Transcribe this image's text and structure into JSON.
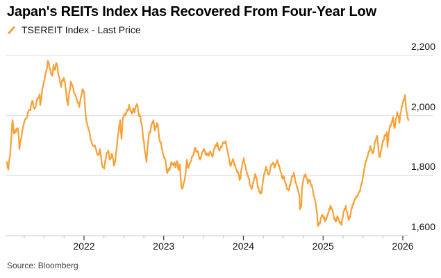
{
  "header": {
    "title": "Japan's REITs Index Has Recovered From Four-Year Low",
    "legend": {
      "icon": "slash-icon",
      "label": "TSEREIT Index - Last Price"
    }
  },
  "footer": {
    "source": "Source: Bloomberg"
  },
  "colors": {
    "series": "#F7A139",
    "grid": "#DCDCDC",
    "axis_line": "#C9C9C9",
    "tick_major": "#333333",
    "tick_minor": "#BBBBBB",
    "label": "#111111",
    "title": "#000000",
    "source_text": "#404040",
    "background": "#FFFFFF"
  },
  "chart_data": {
    "type": "line",
    "title": "Japan's REITs Index Has Recovered From Four-Year Low",
    "series_name": "TSEREIT Index - Last Price",
    "legend_position": "top-left",
    "grid": "horizontal",
    "y_axis_side": "right",
    "x_ticks": [
      2022,
      2023,
      2024,
      2025,
      2026
    ],
    "x_tick_labels": [
      "2022",
      "2023",
      "2024",
      "2025",
      "2026"
    ],
    "x_minor_tick_step_years": 0.25,
    "y_ticks": [
      1600,
      1800,
      2000,
      2200
    ],
    "y_tick_labels": [
      "1,600",
      "1,800",
      "2,000",
      "2,200"
    ],
    "xlim": [
      2021.03,
      2026.08
    ],
    "ylim": [
      1600,
      2240
    ],
    "points": [
      [
        2021.033,
        1845
      ],
      [
        2021.05,
        1820
      ],
      [
        2021.076,
        1880
      ],
      [
        2021.094,
        1950
      ],
      [
        2021.102,
        1985
      ],
      [
        2021.12,
        1940
      ],
      [
        2021.146,
        1945
      ],
      [
        2021.172,
        1958
      ],
      [
        2021.189,
        1888
      ],
      [
        2021.216,
        1930
      ],
      [
        2021.242,
        1970
      ],
      [
        2021.268,
        1990
      ],
      [
        2021.294,
        2005
      ],
      [
        2021.32,
        2020
      ],
      [
        2021.338,
        2035
      ],
      [
        2021.355,
        2048
      ],
      [
        2021.372,
        2025
      ],
      [
        2021.399,
        2038
      ],
      [
        2021.425,
        2060
      ],
      [
        2021.442,
        2071
      ],
      [
        2021.451,
        2035
      ],
      [
        2021.477,
        2090
      ],
      [
        2021.503,
        2118
      ],
      [
        2021.529,
        2150
      ],
      [
        2021.547,
        2182
      ],
      [
        2021.564,
        2165
      ],
      [
        2021.582,
        2148
      ],
      [
        2021.599,
        2132
      ],
      [
        2021.617,
        2168
      ],
      [
        2021.634,
        2152
      ],
      [
        2021.651,
        2175
      ],
      [
        2021.669,
        2158
      ],
      [
        2021.686,
        2130
      ],
      [
        2021.712,
        2095
      ],
      [
        2021.73,
        2120
      ],
      [
        2021.747,
        2126
      ],
      [
        2021.773,
        2085
      ],
      [
        2021.791,
        2045
      ],
      [
        2021.8,
        2035
      ],
      [
        2021.817,
        2080
      ],
      [
        2021.834,
        2113
      ],
      [
        2021.861,
        2095
      ],
      [
        2021.878,
        2075
      ],
      [
        2021.904,
        2058
      ],
      [
        2021.922,
        2043
      ],
      [
        2021.939,
        2028
      ],
      [
        2021.965,
        2065
      ],
      [
        2021.983,
        2088
      ],
      [
        2022.0,
        2078
      ],
      [
        2022.017,
        2010
      ],
      [
        2022.044,
        1965
      ],
      [
        2022.07,
        1942
      ],
      [
        2022.096,
        1912
      ],
      [
        2022.122,
        1898
      ],
      [
        2022.148,
        1890
      ],
      [
        2022.174,
        1868
      ],
      [
        2022.2,
        1888
      ],
      [
        2022.227,
        1836
      ],
      [
        2022.253,
        1823
      ],
      [
        2022.279,
        1868
      ],
      [
        2022.305,
        1884
      ],
      [
        2022.322,
        1853
      ],
      [
        2022.349,
        1873
      ],
      [
        2022.375,
        1833
      ],
      [
        2022.392,
        1846
      ],
      [
        2022.41,
        1893
      ],
      [
        2022.436,
        1950
      ],
      [
        2022.453,
        1985
      ],
      [
        2022.471,
        1922
      ],
      [
        2022.488,
        1992
      ],
      [
        2022.514,
        2000
      ],
      [
        2022.532,
        2008
      ],
      [
        2022.549,
        2020
      ],
      [
        2022.566,
        2036
      ],
      [
        2022.584,
        2016
      ],
      [
        2022.601,
        2006
      ],
      [
        2022.619,
        2024
      ],
      [
        2022.636,
        2010
      ],
      [
        2022.654,
        2030
      ],
      [
        2022.671,
        2034
      ],
      [
        2022.688,
        2000
      ],
      [
        2022.706,
        1996
      ],
      [
        2022.715,
        1975
      ],
      [
        2022.732,
        1955
      ],
      [
        2022.75,
        1915
      ],
      [
        2022.767,
        1875
      ],
      [
        2022.784,
        1845
      ],
      [
        2022.802,
        1905
      ],
      [
        2022.819,
        1945
      ],
      [
        2022.837,
        1955
      ],
      [
        2022.854,
        1975
      ],
      [
        2022.871,
        1985
      ],
      [
        2022.889,
        1950
      ],
      [
        2022.906,
        1962
      ],
      [
        2022.924,
        1973
      ],
      [
        2022.941,
        1930
      ],
      [
        2022.959,
        1912
      ],
      [
        2022.976,
        1890
      ],
      [
        2022.993,
        1872
      ],
      [
        2023.011,
        1860
      ],
      [
        2023.028,
        1835
      ],
      [
        2023.046,
        1808
      ],
      [
        2023.063,
        1820
      ],
      [
        2023.08,
        1827
      ],
      [
        2023.098,
        1845
      ],
      [
        2023.115,
        1836
      ],
      [
        2023.133,
        1845
      ],
      [
        2023.15,
        1828
      ],
      [
        2023.168,
        1848
      ],
      [
        2023.185,
        1818
      ],
      [
        2023.203,
        1838
      ],
      [
        2023.22,
        1768
      ],
      [
        2023.237,
        1757
      ],
      [
        2023.255,
        1778
      ],
      [
        2023.272,
        1802
      ],
      [
        2023.29,
        1853
      ],
      [
        2023.307,
        1825
      ],
      [
        2023.325,
        1840
      ],
      [
        2023.351,
        1860
      ],
      [
        2023.377,
        1876
      ],
      [
        2023.394,
        1893
      ],
      [
        2023.42,
        1880
      ],
      [
        2023.438,
        1868
      ],
      [
        2023.464,
        1858
      ],
      [
        2023.481,
        1878
      ],
      [
        2023.508,
        1888
      ],
      [
        2023.534,
        1868
      ],
      [
        2023.56,
        1866
      ],
      [
        2023.586,
        1880
      ],
      [
        2023.612,
        1862
      ],
      [
        2023.638,
        1890
      ],
      [
        2023.656,
        1897
      ],
      [
        2023.673,
        1910
      ],
      [
        2023.699,
        1883
      ],
      [
        2023.726,
        1895
      ],
      [
        2023.752,
        1908
      ],
      [
        2023.778,
        1915
      ],
      [
        2023.804,
        1878
      ],
      [
        2023.821,
        1858
      ],
      [
        2023.839,
        1832
      ],
      [
        2023.856,
        1845
      ],
      [
        2023.874,
        1850
      ],
      [
        2023.891,
        1836
      ],
      [
        2023.908,
        1823
      ],
      [
        2023.935,
        1810
      ],
      [
        2023.952,
        1785
      ],
      [
        2023.969,
        1808
      ],
      [
        2023.987,
        1840
      ],
      [
        2024.004,
        1858
      ],
      [
        2024.021,
        1838
      ],
      [
        2024.039,
        1815
      ],
      [
        2024.056,
        1798
      ],
      [
        2024.074,
        1788
      ],
      [
        2024.083,
        1768
      ],
      [
        2024.1,
        1755
      ],
      [
        2024.118,
        1772
      ],
      [
        2024.135,
        1792
      ],
      [
        2024.152,
        1802
      ],
      [
        2024.17,
        1786
      ],
      [
        2024.187,
        1762
      ],
      [
        2024.205,
        1745
      ],
      [
        2024.222,
        1740
      ],
      [
        2024.24,
        1772
      ],
      [
        2024.257,
        1802
      ],
      [
        2024.283,
        1830
      ],
      [
        2024.301,
        1818
      ],
      [
        2024.318,
        1805
      ],
      [
        2024.335,
        1820
      ],
      [
        2024.353,
        1836
      ],
      [
        2024.37,
        1843
      ],
      [
        2024.388,
        1828
      ],
      [
        2024.405,
        1840
      ],
      [
        2024.423,
        1852
      ],
      [
        2024.44,
        1836
      ],
      [
        2024.457,
        1826
      ],
      [
        2024.475,
        1808
      ],
      [
        2024.492,
        1790
      ],
      [
        2024.51,
        1796
      ],
      [
        2024.527,
        1774
      ],
      [
        2024.545,
        1758
      ],
      [
        2024.562,
        1752
      ],
      [
        2024.579,
        1766
      ],
      [
        2024.597,
        1782
      ],
      [
        2024.614,
        1796
      ],
      [
        2024.632,
        1810
      ],
      [
        2024.649,
        1784
      ],
      [
        2024.667,
        1768
      ],
      [
        2024.684,
        1752
      ],
      [
        2024.701,
        1738
      ],
      [
        2024.71,
        1688
      ],
      [
        2024.728,
        1700
      ],
      [
        2024.736,
        1762
      ],
      [
        2024.754,
        1788
      ],
      [
        2024.771,
        1802
      ],
      [
        2024.788,
        1795
      ],
      [
        2024.806,
        1775
      ],
      [
        2024.823,
        1786
      ],
      [
        2024.841,
        1780
      ],
      [
        2024.858,
        1768
      ],
      [
        2024.876,
        1742
      ],
      [
        2024.893,
        1722
      ],
      [
        2024.911,
        1700
      ],
      [
        2024.928,
        1660
      ],
      [
        2024.937,
        1632
      ],
      [
        2024.954,
        1640
      ],
      [
        2024.972,
        1658
      ],
      [
        2024.989,
        1668
      ],
      [
        2025.007,
        1660
      ],
      [
        2025.024,
        1648
      ],
      [
        2025.041,
        1655
      ],
      [
        2025.059,
        1670
      ],
      [
        2025.076,
        1690
      ],
      [
        2025.094,
        1700
      ],
      [
        2025.111,
        1688
      ],
      [
        2025.129,
        1672
      ],
      [
        2025.146,
        1658
      ],
      [
        2025.163,
        1648
      ],
      [
        2025.181,
        1665
      ],
      [
        2025.198,
        1652
      ],
      [
        2025.216,
        1642
      ],
      [
        2025.233,
        1636
      ],
      [
        2025.251,
        1668
      ],
      [
        2025.268,
        1690
      ],
      [
        2025.285,
        1700
      ],
      [
        2025.303,
        1678
      ],
      [
        2025.32,
        1652
      ],
      [
        2025.338,
        1660
      ],
      [
        2025.355,
        1690
      ],
      [
        2025.373,
        1705
      ],
      [
        2025.39,
        1715
      ],
      [
        2025.407,
        1722
      ],
      [
        2025.425,
        1730
      ],
      [
        2025.442,
        1740
      ],
      [
        2025.46,
        1748
      ],
      [
        2025.477,
        1770
      ],
      [
        2025.495,
        1790
      ],
      [
        2025.512,
        1815
      ],
      [
        2025.529,
        1840
      ],
      [
        2025.547,
        1854
      ],
      [
        2025.564,
        1868
      ],
      [
        2025.582,
        1880
      ],
      [
        2025.591,
        1898
      ],
      [
        2025.608,
        1885
      ],
      [
        2025.625,
        1875
      ],
      [
        2025.643,
        1895
      ],
      [
        2025.66,
        1920
      ],
      [
        2025.678,
        1932
      ],
      [
        2025.695,
        1885
      ],
      [
        2025.713,
        1862
      ],
      [
        2025.73,
        1885
      ],
      [
        2025.747,
        1912
      ],
      [
        2025.765,
        1920
      ],
      [
        2025.782,
        1935
      ],
      [
        2025.8,
        1945
      ],
      [
        2025.808,
        1895
      ],
      [
        2025.826,
        1945
      ],
      [
        2025.843,
        1968
      ],
      [
        2025.861,
        1978
      ],
      [
        2025.878,
        1995
      ],
      [
        2025.895,
        1958
      ],
      [
        2025.913,
        1988
      ],
      [
        2025.93,
        2012
      ],
      [
        2025.948,
        1995
      ],
      [
        2025.956,
        1975
      ],
      [
        2025.974,
        2010
      ],
      [
        2025.991,
        2030
      ],
      [
        2026.009,
        2052
      ],
      [
        2026.026,
        2068
      ],
      [
        2026.043,
        2023
      ],
      [
        2026.061,
        1990
      ],
      [
        2026.07,
        1985
      ]
    ]
  }
}
